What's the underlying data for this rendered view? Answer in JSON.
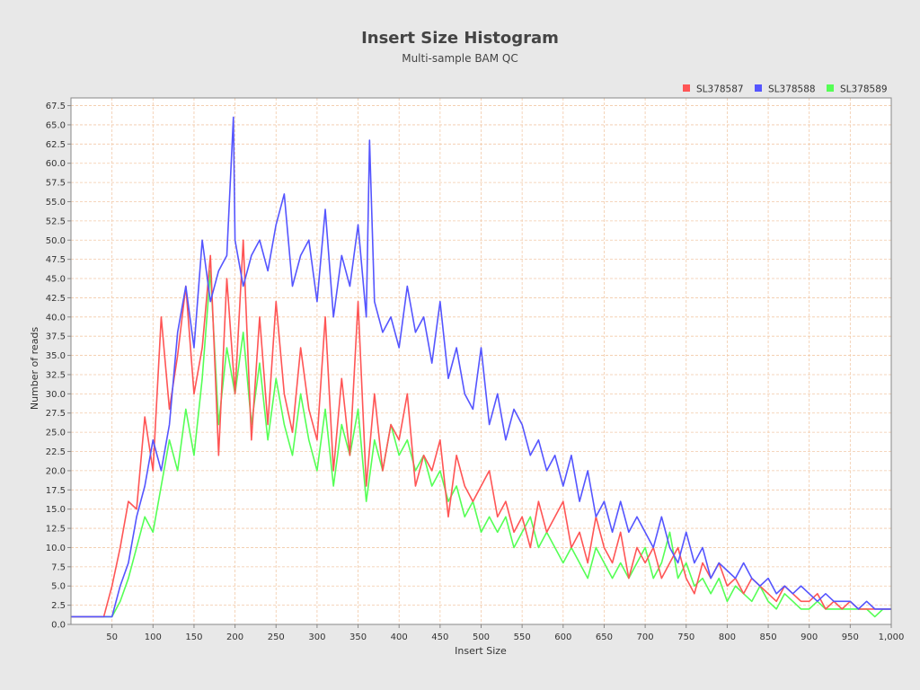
{
  "chart_data": {
    "type": "line",
    "title": "Insert Size Histogram",
    "subtitle": "Multi-sample BAM QC",
    "xlabel": "Insert Size",
    "ylabel": "Number of reads",
    "xlim": [
      0,
      1000
    ],
    "ylim": [
      0,
      68.5
    ],
    "x_ticks": [
      50,
      100,
      150,
      200,
      250,
      300,
      350,
      400,
      450,
      500,
      550,
      600,
      650,
      700,
      750,
      800,
      850,
      900,
      950,
      1000
    ],
    "x_tick_labels": [
      "50",
      "100",
      "150",
      "200",
      "250",
      "300",
      "350",
      "400",
      "450",
      "500",
      "550",
      "600",
      "650",
      "700",
      "750",
      "800",
      "850",
      "900",
      "950",
      "1,000"
    ],
    "y_ticks": [
      0,
      2.5,
      5,
      7.5,
      10,
      12.5,
      15,
      17.5,
      20,
      22.5,
      25,
      27.5,
      30,
      32.5,
      35,
      37.5,
      40,
      42.5,
      45,
      47.5,
      50,
      52.5,
      55,
      57.5,
      60,
      62.5,
      65,
      67.5
    ],
    "y_tick_labels": [
      "0.0",
      "2.5",
      "5.0",
      "7.5",
      "10.0",
      "12.5",
      "15.0",
      "17.5",
      "20.0",
      "22.5",
      "25.0",
      "27.5",
      "30.0",
      "32.5",
      "35.0",
      "37.5",
      "40.0",
      "42.5",
      "45.0",
      "47.5",
      "50.0",
      "52.5",
      "55.0",
      "57.5",
      "60.0",
      "62.5",
      "65.0",
      "67.5"
    ],
    "grid": true,
    "legend_position": "top-right",
    "colors": {
      "background": "#e8e8e8",
      "plot_background": "#ffffff",
      "grid": "#f2c9a8",
      "axis": "#888888"
    },
    "series": [
      {
        "name": "SL378587",
        "color": "#ff5555",
        "x": [
          0,
          10,
          20,
          30,
          40,
          50,
          60,
          70,
          80,
          90,
          100,
          110,
          120,
          130,
          140,
          150,
          160,
          170,
          180,
          190,
          200,
          210,
          220,
          230,
          240,
          250,
          260,
          270,
          280,
          290,
          300,
          310,
          320,
          330,
          340,
          350,
          360,
          370,
          380,
          390,
          400,
          410,
          420,
          430,
          440,
          450,
          460,
          470,
          480,
          490,
          500,
          510,
          520,
          530,
          540,
          550,
          560,
          570,
          580,
          590,
          600,
          610,
          620,
          630,
          640,
          650,
          660,
          670,
          680,
          690,
          700,
          710,
          720,
          730,
          740,
          750,
          760,
          770,
          780,
          790,
          800,
          810,
          820,
          830,
          840,
          850,
          860,
          870,
          880,
          890,
          900,
          910,
          920,
          930,
          940,
          950,
          960,
          970,
          980,
          990,
          1000
        ],
        "y": [
          1,
          1,
          1,
          1,
          1,
          5,
          10,
          16,
          15,
          27,
          20,
          40,
          28,
          35,
          44,
          30,
          36,
          48,
          22,
          45,
          30,
          50,
          24,
          40,
          26,
          42,
          30,
          25,
          36,
          28,
          24,
          40,
          20,
          32,
          22,
          42,
          18,
          30,
          20,
          26,
          24,
          30,
          18,
          22,
          20,
          24,
          14,
          22,
          18,
          16,
          18,
          20,
          14,
          16,
          12,
          14,
          10,
          16,
          12,
          14,
          16,
          10,
          12,
          8,
          14,
          10,
          8,
          12,
          6,
          10,
          8,
          10,
          6,
          8,
          10,
          6,
          4,
          8,
          6,
          8,
          5,
          6,
          4,
          6,
          5,
          4,
          3,
          5,
          4,
          3,
          3,
          4,
          2,
          3,
          2,
          3,
          2,
          2,
          2,
          2,
          2
        ]
      },
      {
        "name": "SL378588",
        "color": "#5555ff",
        "x": [
          0,
          10,
          20,
          30,
          40,
          50,
          60,
          70,
          80,
          90,
          100,
          110,
          120,
          130,
          140,
          150,
          160,
          170,
          180,
          190,
          198,
          200,
          210,
          220,
          230,
          240,
          250,
          260,
          270,
          280,
          290,
          300,
          310,
          320,
          330,
          340,
          350,
          360,
          364,
          370,
          380,
          390,
          400,
          410,
          420,
          430,
          440,
          450,
          460,
          470,
          480,
          490,
          500,
          510,
          520,
          530,
          540,
          550,
          560,
          570,
          580,
          590,
          600,
          610,
          620,
          630,
          640,
          650,
          660,
          670,
          680,
          690,
          700,
          710,
          720,
          730,
          740,
          750,
          760,
          770,
          780,
          790,
          800,
          810,
          820,
          830,
          840,
          850,
          860,
          870,
          880,
          890,
          900,
          910,
          920,
          930,
          940,
          950,
          960,
          970,
          980,
          990,
          1000
        ],
        "y": [
          1,
          1,
          1,
          1,
          1,
          1,
          5,
          8,
          14,
          18,
          24,
          20,
          26,
          38,
          44,
          36,
          50,
          42,
          46,
          48,
          66,
          50,
          44,
          48,
          50,
          46,
          52,
          56,
          44,
          48,
          50,
          42,
          54,
          40,
          48,
          44,
          52,
          40,
          63,
          42,
          38,
          40,
          36,
          44,
          38,
          40,
          34,
          42,
          32,
          36,
          30,
          28,
          36,
          26,
          30,
          24,
          28,
          26,
          22,
          24,
          20,
          22,
          18,
          22,
          16,
          20,
          14,
          16,
          12,
          16,
          12,
          14,
          12,
          10,
          14,
          10,
          8,
          12,
          8,
          10,
          6,
          8,
          7,
          6,
          8,
          6,
          5,
          6,
          4,
          5,
          4,
          5,
          4,
          3,
          4,
          3,
          3,
          3,
          2,
          3,
          2,
          2,
          2
        ]
      },
      {
        "name": "SL378589",
        "color": "#55ff55",
        "x": [
          0,
          10,
          20,
          30,
          40,
          50,
          60,
          70,
          80,
          90,
          100,
          110,
          120,
          130,
          140,
          150,
          160,
          170,
          180,
          190,
          200,
          210,
          220,
          230,
          240,
          250,
          260,
          270,
          280,
          290,
          300,
          310,
          320,
          330,
          340,
          350,
          360,
          370,
          380,
          390,
          400,
          410,
          420,
          430,
          440,
          450,
          460,
          470,
          480,
          490,
          500,
          510,
          520,
          530,
          540,
          550,
          560,
          570,
          580,
          590,
          600,
          610,
          620,
          630,
          640,
          650,
          660,
          670,
          680,
          690,
          700,
          710,
          720,
          730,
          740,
          750,
          760,
          770,
          780,
          790,
          800,
          810,
          820,
          830,
          840,
          850,
          860,
          870,
          880,
          890,
          900,
          910,
          920,
          930,
          940,
          950,
          960,
          970,
          980,
          990,
          1000
        ],
        "y": [
          1,
          1,
          1,
          1,
          1,
          1,
          3,
          6,
          10,
          14,
          12,
          18,
          24,
          20,
          28,
          22,
          32,
          46,
          26,
          36,
          30,
          38,
          26,
          34,
          24,
          32,
          26,
          22,
          30,
          24,
          20,
          28,
          18,
          26,
          22,
          28,
          16,
          24,
          20,
          26,
          22,
          24,
          20,
          22,
          18,
          20,
          16,
          18,
          14,
          16,
          12,
          14,
          12,
          14,
          10,
          12,
          14,
          10,
          12,
          10,
          8,
          10,
          8,
          6,
          10,
          8,
          6,
          8,
          6,
          8,
          10,
          6,
          8,
          12,
          6,
          8,
          5,
          6,
          4,
          6,
          3,
          5,
          4,
          3,
          5,
          3,
          2,
          4,
          3,
          2,
          2,
          3,
          2,
          2,
          2,
          2,
          2,
          2,
          1,
          2,
          2
        ]
      }
    ]
  }
}
